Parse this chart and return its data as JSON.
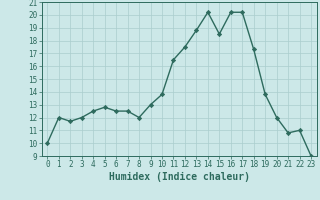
{
  "title": "",
  "xlabel": "Humidex (Indice chaleur)",
  "x": [
    0,
    1,
    2,
    3,
    4,
    5,
    6,
    7,
    8,
    9,
    10,
    11,
    12,
    13,
    14,
    15,
    16,
    17,
    18,
    19,
    20,
    21,
    22,
    23
  ],
  "y": [
    10,
    12,
    11.7,
    12,
    12.5,
    12.8,
    12.5,
    12.5,
    12,
    13,
    13.8,
    16.5,
    17.5,
    18.8,
    20.2,
    18.5,
    20.2,
    20.2,
    17.3,
    13.8,
    12,
    10.8,
    11,
    9
  ],
  "line_color": "#2e6b5e",
  "marker": "D",
  "marker_size": 2.2,
  "bg_color": "#cce8e8",
  "grid_color": "#aacece",
  "ylim": [
    9,
    21
  ],
  "xlim": [
    -0.5,
    23.5
  ],
  "yticks": [
    9,
    10,
    11,
    12,
    13,
    14,
    15,
    16,
    17,
    18,
    19,
    20,
    21
  ],
  "xticks": [
    0,
    1,
    2,
    3,
    4,
    5,
    6,
    7,
    8,
    9,
    10,
    11,
    12,
    13,
    14,
    15,
    16,
    17,
    18,
    19,
    20,
    21,
    22,
    23
  ],
  "tick_fontsize": 5.5,
  "label_fontsize": 7,
  "line_width": 1.0
}
